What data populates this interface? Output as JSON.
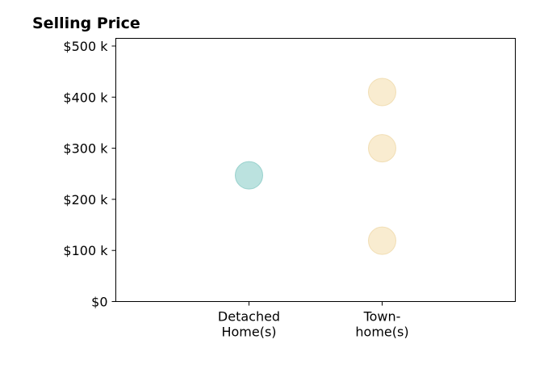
{
  "chart_data": {
    "type": "scatter",
    "title": "Selling Price",
    "xlabel": "",
    "ylabel": "",
    "categories": [
      [
        "Detached",
        "Home(s)"
      ],
      [
        "Town-",
        "home(s)"
      ]
    ],
    "y_ticks": [
      {
        "value": 0,
        "label": "$0"
      },
      {
        "value": 100000,
        "label": "$100 k"
      },
      {
        "value": 200000,
        "label": "$200 k"
      },
      {
        "value": 300000,
        "label": "$300 k"
      },
      {
        "value": 400000,
        "label": "$400 k"
      },
      {
        "value": 500000,
        "label": "$500 k"
      }
    ],
    "ylim": [
      0,
      515000
    ],
    "grid": false,
    "legend": "none",
    "points": [
      {
        "category": 0,
        "y": 247000,
        "color": "#8ecfca"
      },
      {
        "category": 1,
        "y": 410000,
        "color": "#f5dfb0"
      },
      {
        "category": 1,
        "y": 300000,
        "color": "#f5dfb0"
      },
      {
        "category": 1,
        "y": 119000,
        "color": "#f5dfb0"
      }
    ],
    "point_edge_colors": [
      "#7ec4bf",
      "#ecd49f"
    ]
  }
}
